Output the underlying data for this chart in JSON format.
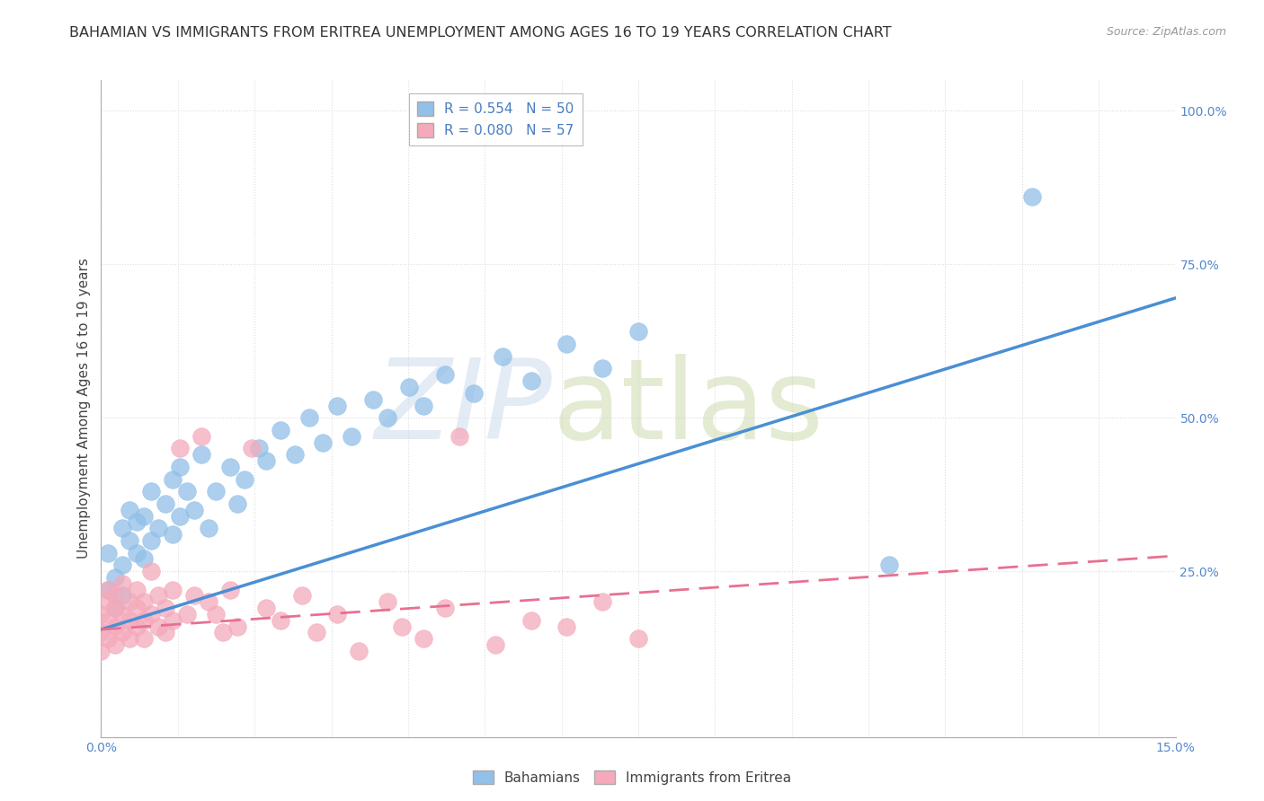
{
  "title": "BAHAMIAN VS IMMIGRANTS FROM ERITREA UNEMPLOYMENT AMONG AGES 16 TO 19 YEARS CORRELATION CHART",
  "source": "Source: ZipAtlas.com",
  "ylabel": "Unemployment Among Ages 16 to 19 years",
  "xlim": [
    0.0,
    0.15
  ],
  "ylim": [
    -0.02,
    1.05
  ],
  "background_color": "#FFFFFF",
  "plot_bg_color": "#FFFFFF",
  "grid_color": "#DDDDDD",
  "watermark_zip": "ZIP",
  "watermark_atlas": "atlas",
  "watermark_color_zip": "#C8D8EC",
  "watermark_color_atlas": "#C8D8A8",
  "title_fontsize": 11.5,
  "axis_label_fontsize": 11,
  "tick_fontsize": 10,
  "legend_fontsize": 11,
  "bah_color": "#92C0E8",
  "eri_color": "#F4AABB",
  "bah_line_color": "#4A8FD4",
  "eri_line_color": "#E87090",
  "bah_R": 0.554,
  "bah_N": 50,
  "eri_R": 0.08,
  "eri_N": 57,
  "bah_trend_y0": 0.155,
  "bah_trend_y1": 0.695,
  "eri_trend_y0": 0.155,
  "eri_trend_y1": 0.275,
  "bah_x": [
    0.001,
    0.001,
    0.002,
    0.002,
    0.003,
    0.003,
    0.003,
    0.004,
    0.004,
    0.005,
    0.005,
    0.006,
    0.006,
    0.007,
    0.007,
    0.008,
    0.009,
    0.01,
    0.01,
    0.011,
    0.011,
    0.012,
    0.013,
    0.014,
    0.015,
    0.016,
    0.018,
    0.019,
    0.02,
    0.022,
    0.023,
    0.025,
    0.027,
    0.029,
    0.031,
    0.033,
    0.035,
    0.038,
    0.04,
    0.043,
    0.045,
    0.048,
    0.052,
    0.056,
    0.06,
    0.065,
    0.07,
    0.075,
    0.11,
    0.13
  ],
  "bah_y": [
    0.22,
    0.28,
    0.19,
    0.24,
    0.26,
    0.32,
    0.21,
    0.3,
    0.35,
    0.28,
    0.33,
    0.27,
    0.34,
    0.3,
    0.38,
    0.32,
    0.36,
    0.31,
    0.4,
    0.34,
    0.42,
    0.38,
    0.35,
    0.44,
    0.32,
    0.38,
    0.42,
    0.36,
    0.4,
    0.45,
    0.43,
    0.48,
    0.44,
    0.5,
    0.46,
    0.52,
    0.47,
    0.53,
    0.5,
    0.55,
    0.52,
    0.57,
    0.54,
    0.6,
    0.56,
    0.62,
    0.58,
    0.64,
    0.26,
    0.86
  ],
  "eri_x": [
    0.0,
    0.0,
    0.0,
    0.001,
    0.001,
    0.001,
    0.001,
    0.002,
    0.002,
    0.002,
    0.002,
    0.003,
    0.003,
    0.003,
    0.004,
    0.004,
    0.004,
    0.005,
    0.005,
    0.005,
    0.006,
    0.006,
    0.006,
    0.007,
    0.007,
    0.008,
    0.008,
    0.009,
    0.009,
    0.01,
    0.01,
    0.011,
    0.012,
    0.013,
    0.014,
    0.015,
    0.016,
    0.017,
    0.018,
    0.019,
    0.021,
    0.023,
    0.025,
    0.028,
    0.03,
    0.033,
    0.036,
    0.04,
    0.042,
    0.045,
    0.048,
    0.05,
    0.055,
    0.06,
    0.065,
    0.07,
    0.075
  ],
  "eri_y": [
    0.18,
    0.15,
    0.12,
    0.17,
    0.2,
    0.14,
    0.22,
    0.16,
    0.19,
    0.13,
    0.21,
    0.18,
    0.15,
    0.23,
    0.17,
    0.2,
    0.14,
    0.19,
    0.16,
    0.22,
    0.17,
    0.2,
    0.14,
    0.18,
    0.25,
    0.16,
    0.21,
    0.15,
    0.19,
    0.17,
    0.22,
    0.45,
    0.18,
    0.21,
    0.47,
    0.2,
    0.18,
    0.15,
    0.22,
    0.16,
    0.45,
    0.19,
    0.17,
    0.21,
    0.15,
    0.18,
    0.12,
    0.2,
    0.16,
    0.14,
    0.19,
    0.47,
    0.13,
    0.17,
    0.16,
    0.2,
    0.14
  ]
}
